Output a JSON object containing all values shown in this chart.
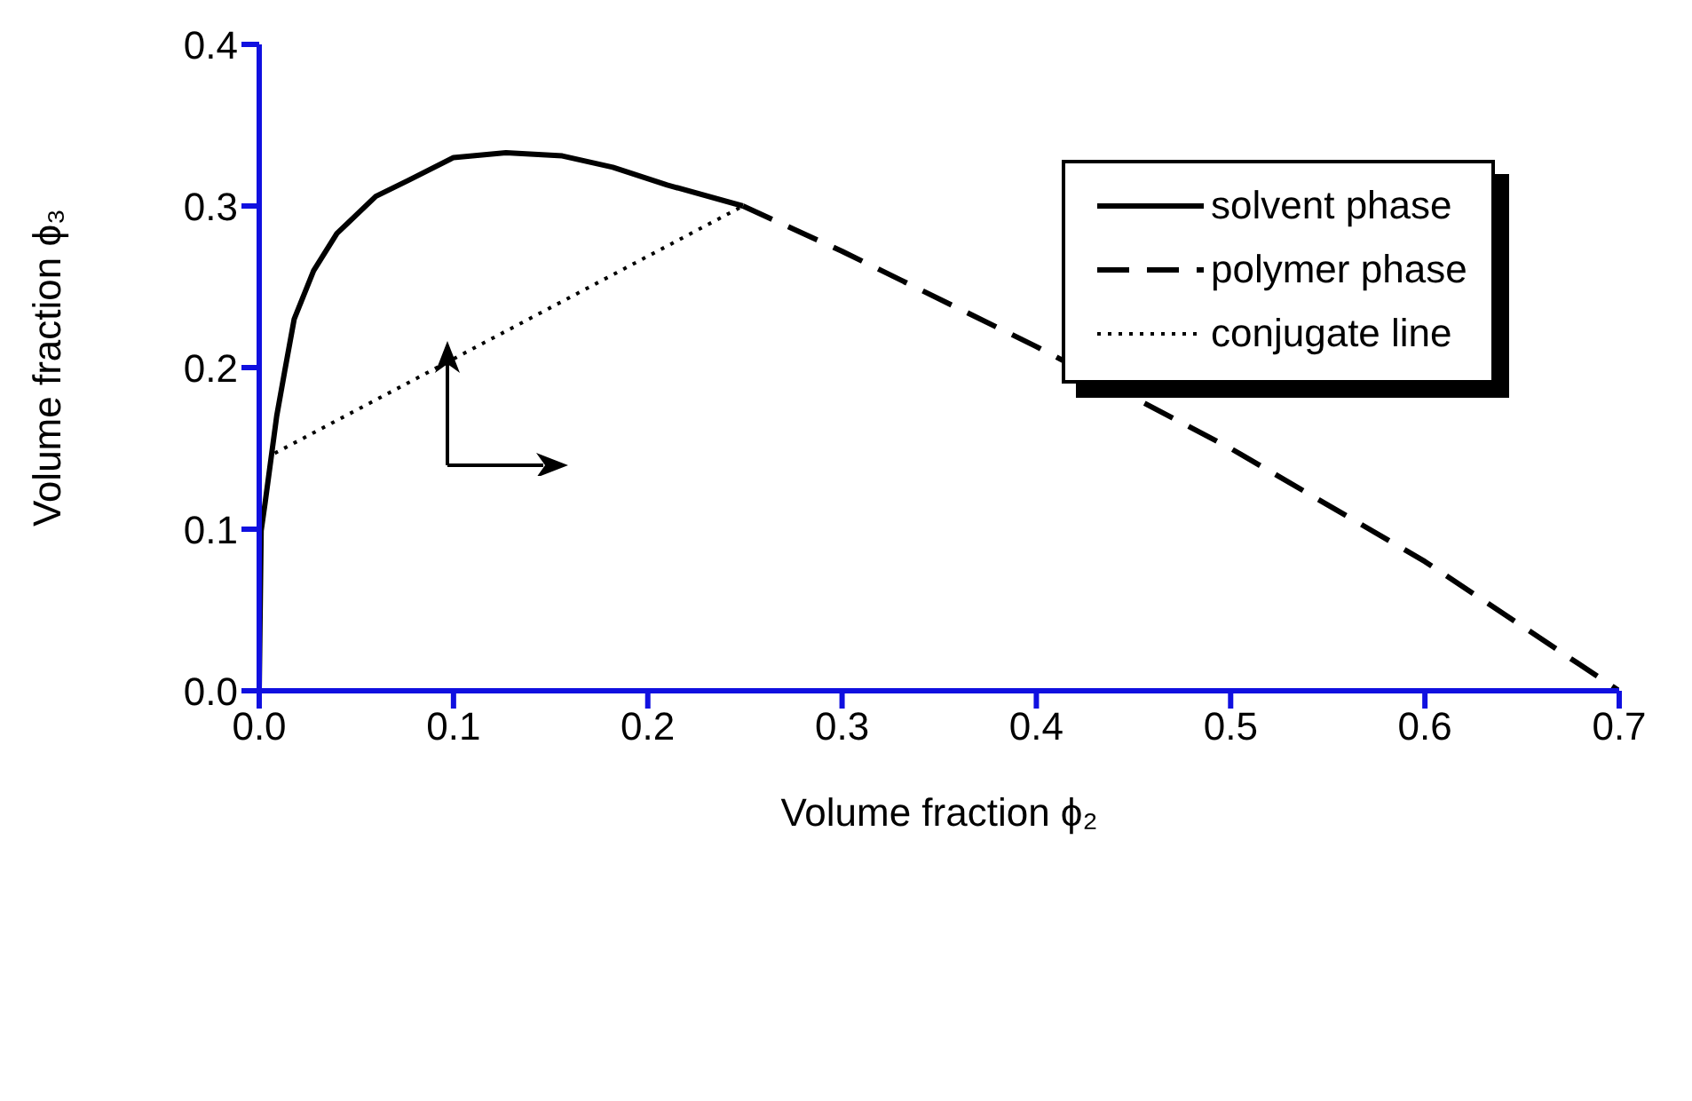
{
  "chart_data": {
    "type": "line",
    "xlabel": "Volume fraction ϕ₂",
    "ylabel": "Volume fraction ϕ₃",
    "xlim": [
      0,
      0.7
    ],
    "xticks": [
      {
        "value": 0,
        "label": "0.0"
      },
      0.1,
      0.2,
      0.3,
      0.4,
      0.5,
      0.6,
      0.7
    ],
    "ylim": [
      0,
      0.4
    ],
    "yticks": [
      {
        "value": 0,
        "label": "0.0"
      },
      0.1,
      0.2,
      0.3,
      0.4
    ],
    "legend": "top right",
    "marker": "none",
    "series": [
      {
        "name": "solvent phase",
        "color": "#000000",
        "line_style": "solid",
        "x": [
          0,
          0.001,
          0.003,
          0.006,
          0.009,
          0.013,
          0.018,
          0.028,
          0.04,
          0.06,
          0.077,
          0.1,
          0.127,
          0.156,
          0.182,
          0.21,
          0.249
        ],
        "values": [
          0,
          0.099,
          0.116,
          0.143,
          0.17,
          0.197,
          0.23,
          0.26,
          0.283,
          0.306,
          0.316,
          0.33,
          0.333,
          0.331,
          0.324,
          0.313,
          0.3
        ]
      },
      {
        "name": "polymer phase",
        "color": "#000000",
        "line_style": "dashed",
        "x": [
          0.249,
          0.3,
          0.4,
          0.5,
          0.6,
          0.7
        ],
        "values": [
          0.3,
          0.272,
          0.213,
          0.15,
          0.08,
          0
        ]
      },
      {
        "name": "conjugate line",
        "color": "#000000",
        "line_style": "dotted",
        "x": [
          0.008,
          0.249
        ],
        "values": [
          0.147,
          0.3
        ]
      }
    ]
  }
}
